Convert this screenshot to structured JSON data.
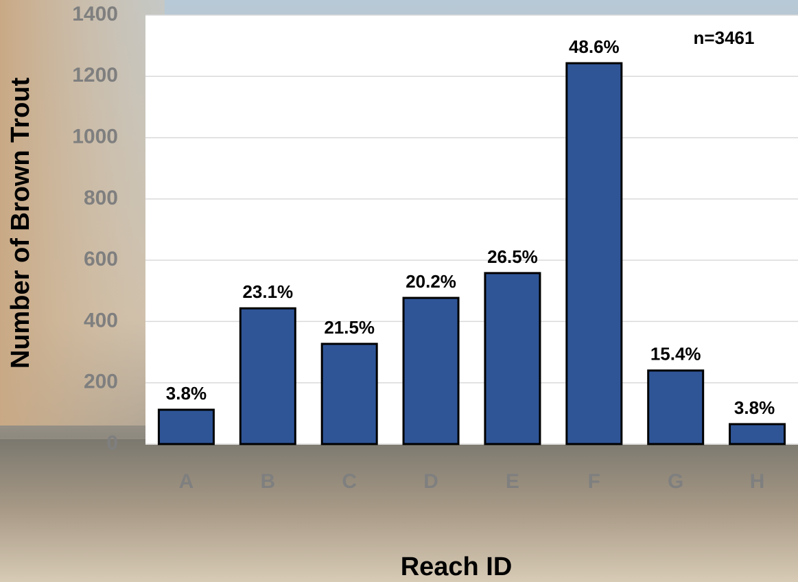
{
  "chart_data": {
    "type": "bar",
    "x_label": "Reach ID",
    "y_label": "Number of Brown Trout",
    "annotation": "n=3461",
    "categories": [
      "A",
      "B",
      "C",
      "D",
      "E",
      "F",
      "G",
      "H"
    ],
    "values": [
      112,
      443,
      327,
      477,
      558,
      1243,
      240,
      65
    ],
    "bar_annotations": [
      "3.8%",
      "23.1%",
      "21.5%",
      "20.2%",
      "26.5%",
      "48.6%",
      "15.4%",
      "3.8%"
    ],
    "color": "#2f5597",
    "ylim": [
      0,
      1400
    ],
    "yticks": [
      0,
      200,
      400,
      600,
      800,
      1000,
      1200,
      1400
    ],
    "grid": true
  }
}
